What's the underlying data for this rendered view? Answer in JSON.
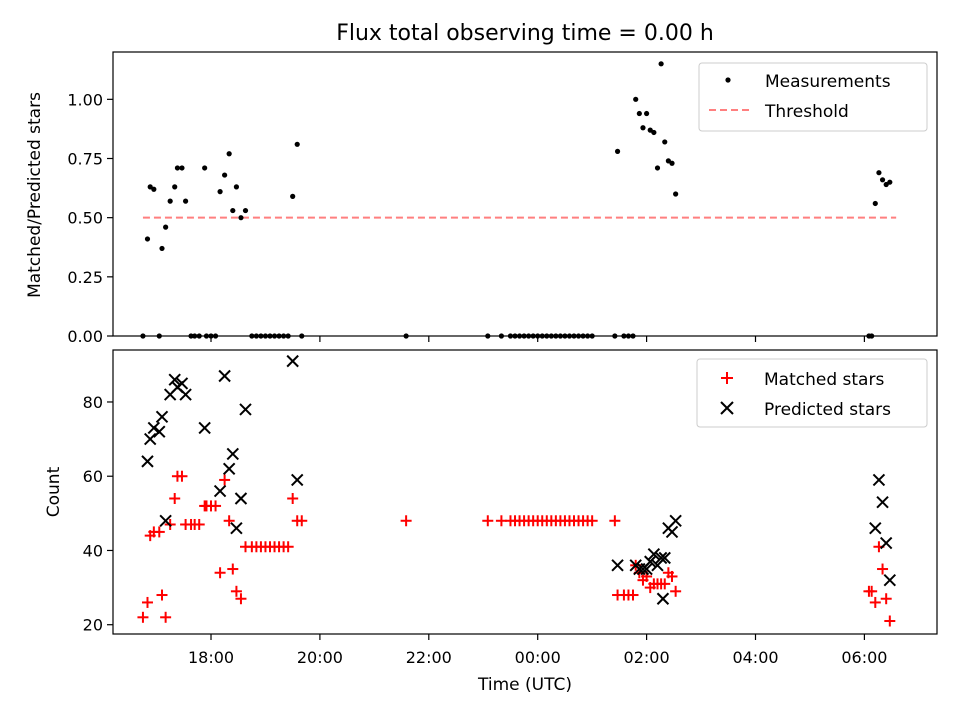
{
  "chart_data": [
    {
      "type": "scatter",
      "title": "Flux total observing time = 0.00 h",
      "xlabel": "",
      "ylabel": "Matched/Predicted stars",
      "ylim": [
        0,
        1.2
      ],
      "yticks": [
        0,
        0.25,
        0.5,
        0.75,
        1.0
      ],
      "ytick_labels": [
        "0.00",
        "0.25",
        "0.50",
        "0.75",
        "1.00"
      ],
      "xlim": [
        "16:12",
        "07:20"
      ],
      "legend": "top-right",
      "grid": false,
      "series": [
        {
          "name": "Measurements",
          "marker": "dot",
          "color": "#000000",
          "points": [
            [
              "16:45",
              0
            ],
            [
              "16:50",
              0.41
            ],
            [
              "16:53",
              0.63
            ],
            [
              "16:57",
              0.62
            ],
            [
              "17:03",
              0
            ],
            [
              "17:06",
              0.37
            ],
            [
              "17:10",
              0.46
            ],
            [
              "17:15",
              0.57
            ],
            [
              "17:20",
              0.63
            ],
            [
              "17:23",
              0.71
            ],
            [
              "17:28",
              0.71
            ],
            [
              "17:32",
              0.57
            ],
            [
              "17:38",
              0
            ],
            [
              "17:42",
              0
            ],
            [
              "17:47",
              0
            ],
            [
              "17:53",
              0.71
            ],
            [
              "17:55",
              0
            ],
            [
              "18:00",
              0
            ],
            [
              "18:05",
              0
            ],
            [
              "18:10",
              0.61
            ],
            [
              "18:15",
              0.68
            ],
            [
              "18:20",
              0.77
            ],
            [
              "18:24",
              0.53
            ],
            [
              "18:28",
              0.63
            ],
            [
              "18:33",
              0.5
            ],
            [
              "18:38",
              0.53
            ],
            [
              "18:45",
              0
            ],
            [
              "18:50",
              0
            ],
            [
              "18:55",
              0
            ],
            [
              "19:00",
              0
            ],
            [
              "19:05",
              0
            ],
            [
              "19:10",
              0
            ],
            [
              "19:15",
              0
            ],
            [
              "19:20",
              0
            ],
            [
              "19:25",
              0
            ],
            [
              "19:30",
              0.59
            ],
            [
              "19:35",
              0.81
            ],
            [
              "19:40",
              0
            ],
            [
              "21:35",
              0
            ],
            [
              "23:05",
              0
            ],
            [
              "23:20",
              0
            ],
            [
              "23:30",
              0
            ],
            [
              "23:35",
              0
            ],
            [
              "23:40",
              0
            ],
            [
              "23:45",
              0
            ],
            [
              "23:50",
              0
            ],
            [
              "23:55",
              0
            ],
            [
              "00:00",
              0
            ],
            [
              "00:05",
              0
            ],
            [
              "00:10",
              0
            ],
            [
              "00:15",
              0
            ],
            [
              "00:20",
              0
            ],
            [
              "00:25",
              0
            ],
            [
              "00:30",
              0
            ],
            [
              "00:35",
              0
            ],
            [
              "00:40",
              0
            ],
            [
              "00:45",
              0
            ],
            [
              "00:50",
              0
            ],
            [
              "00:55",
              0
            ],
            [
              "01:00",
              0
            ],
            [
              "01:25",
              0
            ],
            [
              "01:28",
              0.78
            ],
            [
              "01:35",
              0
            ],
            [
              "01:40",
              0
            ],
            [
              "01:45",
              0
            ],
            [
              "01:48",
              1.0
            ],
            [
              "01:52",
              0.94
            ],
            [
              "01:56",
              0.88
            ],
            [
              "02:00",
              0.94
            ],
            [
              "02:04",
              0.87
            ],
            [
              "02:08",
              0.86
            ],
            [
              "02:12",
              0.71
            ],
            [
              "02:16",
              1.15
            ],
            [
              "02:20",
              0.82
            ],
            [
              "02:24",
              0.74
            ],
            [
              "02:28",
              0.73
            ],
            [
              "02:32",
              0.6
            ],
            [
              "06:05",
              0
            ],
            [
              "06:08",
              0
            ],
            [
              "06:12",
              0.56
            ],
            [
              "06:16",
              0.69
            ],
            [
              "06:20",
              0.66
            ],
            [
              "06:24",
              0.64
            ],
            [
              "06:28",
              0.65
            ]
          ]
        },
        {
          "name": "Threshold",
          "marker": "dashed-line",
          "color": "#ff7f7f",
          "points": [
            [
              "16:45",
              0.5
            ],
            [
              "06:35",
              0.5
            ]
          ]
        }
      ]
    },
    {
      "type": "scatter",
      "title": "",
      "xlabel": "Time (UTC)",
      "ylabel": "Count",
      "ylim": [
        17.5,
        94
      ],
      "yticks": [
        20,
        40,
        60,
        80
      ],
      "ytick_labels": [
        "20",
        "40",
        "60",
        "80"
      ],
      "xlim": [
        "16:12",
        "07:20"
      ],
      "xticks": [
        "18:00",
        "20:00",
        "22:00",
        "00:00",
        "02:00",
        "04:00",
        "06:00"
      ],
      "legend": "top-right",
      "grid": false,
      "series": [
        {
          "name": "Matched stars",
          "marker": "plus",
          "color": "#ff0000",
          "points": [
            [
              "16:45",
              22
            ],
            [
              "16:50",
              26
            ],
            [
              "16:53",
              44
            ],
            [
              "16:57",
              45
            ],
            [
              "17:03",
              45
            ],
            [
              "17:06",
              28
            ],
            [
              "17:10",
              22
            ],
            [
              "17:15",
              47
            ],
            [
              "17:20",
              54
            ],
            [
              "17:23",
              60
            ],
            [
              "17:28",
              60
            ],
            [
              "17:32",
              47
            ],
            [
              "17:38",
              47
            ],
            [
              "17:42",
              47
            ],
            [
              "17:47",
              47
            ],
            [
              "17:53",
              52
            ],
            [
              "17:55",
              52
            ],
            [
              "18:00",
              52
            ],
            [
              "18:05",
              52
            ],
            [
              "18:10",
              34
            ],
            [
              "18:15",
              59
            ],
            [
              "18:20",
              48
            ],
            [
              "18:24",
              35
            ],
            [
              "18:28",
              29
            ],
            [
              "18:33",
              27
            ],
            [
              "18:38",
              41
            ],
            [
              "18:45",
              41
            ],
            [
              "18:50",
              41
            ],
            [
              "18:55",
              41
            ],
            [
              "19:00",
              41
            ],
            [
              "19:05",
              41
            ],
            [
              "19:10",
              41
            ],
            [
              "19:15",
              41
            ],
            [
              "19:20",
              41
            ],
            [
              "19:25",
              41
            ],
            [
              "19:30",
              54
            ],
            [
              "19:35",
              48
            ],
            [
              "19:40",
              48
            ],
            [
              "21:35",
              48
            ],
            [
              "23:05",
              48
            ],
            [
              "23:20",
              48
            ],
            [
              "23:30",
              48
            ],
            [
              "23:35",
              48
            ],
            [
              "23:40",
              48
            ],
            [
              "23:45",
              48
            ],
            [
              "23:50",
              48
            ],
            [
              "23:55",
              48
            ],
            [
              "00:00",
              48
            ],
            [
              "00:05",
              48
            ],
            [
              "00:10",
              48
            ],
            [
              "00:15",
              48
            ],
            [
              "00:20",
              48
            ],
            [
              "00:25",
              48
            ],
            [
              "00:30",
              48
            ],
            [
              "00:35",
              48
            ],
            [
              "00:40",
              48
            ],
            [
              "00:45",
              48
            ],
            [
              "00:50",
              48
            ],
            [
              "00:55",
              48
            ],
            [
              "01:00",
              48
            ],
            [
              "01:25",
              48
            ],
            [
              "01:28",
              28
            ],
            [
              "01:35",
              28
            ],
            [
              "01:40",
              28
            ],
            [
              "01:45",
              28
            ],
            [
              "01:48",
              36
            ],
            [
              "01:52",
              34
            ],
            [
              "01:56",
              32
            ],
            [
              "02:00",
              33
            ],
            [
              "02:04",
              30
            ],
            [
              "02:08",
              31
            ],
            [
              "02:12",
              31
            ],
            [
              "02:16",
              31
            ],
            [
              "02:20",
              31
            ],
            [
              "02:24",
              34
            ],
            [
              "02:28",
              33
            ],
            [
              "02:32",
              29
            ],
            [
              "06:05",
              29
            ],
            [
              "06:08",
              29
            ],
            [
              "06:12",
              26
            ],
            [
              "06:16",
              41
            ],
            [
              "06:20",
              35
            ],
            [
              "06:24",
              27
            ],
            [
              "06:28",
              21
            ]
          ]
        },
        {
          "name": "Predicted stars",
          "marker": "x",
          "color": "#000000",
          "points": [
            [
              "16:50",
              64
            ],
            [
              "16:53",
              70
            ],
            [
              "16:57",
              73
            ],
            [
              "17:03",
              72
            ],
            [
              "17:06",
              76
            ],
            [
              "17:10",
              48
            ],
            [
              "17:15",
              82
            ],
            [
              "17:20",
              86
            ],
            [
              "17:23",
              84
            ],
            [
              "17:28",
              85
            ],
            [
              "17:32",
              82
            ],
            [
              "17:53",
              73
            ],
            [
              "18:10",
              56
            ],
            [
              "18:15",
              87
            ],
            [
              "18:20",
              62
            ],
            [
              "18:24",
              66
            ],
            [
              "18:28",
              46
            ],
            [
              "18:33",
              54
            ],
            [
              "18:38",
              78
            ],
            [
              "19:30",
              91
            ],
            [
              "19:35",
              59
            ],
            [
              "01:28",
              36
            ],
            [
              "01:48",
              36
            ],
            [
              "01:52",
              35
            ],
            [
              "01:56",
              35
            ],
            [
              "02:00",
              35
            ],
            [
              "02:04",
              37
            ],
            [
              "02:08",
              39
            ],
            [
              "02:12",
              36
            ],
            [
              "02:16",
              38
            ],
            [
              "02:18",
              27
            ],
            [
              "02:20",
              38
            ],
            [
              "02:24",
              46
            ],
            [
              "02:28",
              45
            ],
            [
              "02:32",
              48
            ],
            [
              "06:12",
              46
            ],
            [
              "06:16",
              59
            ],
            [
              "06:20",
              53
            ],
            [
              "06:24",
              42
            ],
            [
              "06:28",
              32
            ]
          ]
        }
      ]
    }
  ]
}
